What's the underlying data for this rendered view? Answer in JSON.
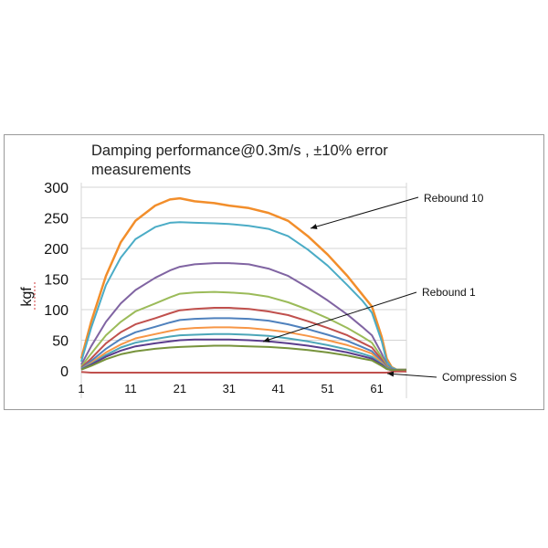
{
  "chart_data": {
    "type": "line",
    "title": "Damping performance@0.3m/s , ±10% error measurements",
    "xlabel": "",
    "ylabel": "kgf",
    "xlim": [
      1,
      67
    ],
    "ylim": [
      0,
      300
    ],
    "x_ticks": [
      "1",
      "11",
      "21",
      "31",
      "41",
      "51",
      "61"
    ],
    "y_ticks": [
      "0",
      "50",
      "100",
      "150",
      "200",
      "250",
      "300"
    ],
    "grid": "horizontal",
    "legend": "none",
    "x": [
      1,
      3,
      6,
      9,
      12,
      16,
      19,
      21,
      24,
      28,
      31,
      35,
      39,
      43,
      47,
      51,
      55,
      58,
      60,
      62,
      63,
      64,
      65,
      67
    ],
    "series": [
      {
        "name": "Rebound 10",
        "color": "#f28e2b",
        "values": [
          20,
          80,
          155,
          210,
          245,
          270,
          280,
          282,
          277,
          274,
          270,
          266,
          258,
          245,
          220,
          190,
          155,
          125,
          105,
          55,
          20,
          6,
          2,
          2
        ]
      },
      {
        "color": "#4bacc6",
        "values": [
          15,
          70,
          140,
          185,
          215,
          235,
          242,
          243,
          242,
          241,
          240,
          237,
          232,
          220,
          198,
          172,
          140,
          115,
          95,
          48,
          15,
          5,
          2,
          2
        ]
      },
      {
        "color": "#8064a2",
        "values": [
          10,
          40,
          80,
          110,
          132,
          152,
          164,
          170,
          174,
          176,
          176,
          174,
          167,
          155,
          136,
          115,
          92,
          72,
          58,
          28,
          10,
          3,
          1,
          1
        ]
      },
      {
        "color": "#9bbb59",
        "values": [
          7,
          28,
          58,
          80,
          97,
          110,
          120,
          126,
          128,
          129,
          128,
          126,
          121,
          112,
          100,
          86,
          70,
          56,
          46,
          22,
          8,
          2,
          1,
          1
        ]
      },
      {
        "color": "#c0504d",
        "values": [
          5,
          20,
          45,
          63,
          76,
          86,
          94,
          99,
          101,
          103,
          103,
          101,
          97,
          91,
          81,
          70,
          58,
          46,
          38,
          18,
          6,
          2,
          1,
          1
        ]
      },
      {
        "color": "#4f81bd",
        "values": [
          4,
          16,
          36,
          52,
          63,
          72,
          79,
          83,
          85,
          86,
          86,
          85,
          82,
          76,
          68,
          59,
          49,
          39,
          32,
          15,
          5,
          2,
          1,
          1
        ]
      },
      {
        "color": "#f79646",
        "values": [
          3,
          13,
          30,
          43,
          53,
          60,
          65,
          68,
          70,
          71,
          71,
          70,
          67,
          63,
          57,
          50,
          42,
          34,
          28,
          13,
          4,
          1,
          1,
          1
        ]
      },
      {
        "color": "#4ca6b8",
        "values": [
          3,
          11,
          26,
          38,
          46,
          52,
          56,
          58,
          59,
          60,
          60,
          59,
          57,
          53,
          48,
          42,
          35,
          28,
          23,
          11,
          4,
          1,
          1,
          1
        ]
      },
      {
        "name": "Rebound 1",
        "color": "#5b3d8c",
        "values": [
          2,
          10,
          23,
          33,
          40,
          45,
          48,
          50,
          51,
          51,
          51,
          50,
          48,
          45,
          41,
          36,
          30,
          24,
          20,
          10,
          3,
          1,
          1,
          1
        ]
      },
      {
        "color": "#77933c",
        "values": [
          2,
          8,
          19,
          27,
          32,
          36,
          38,
          39,
          40,
          41,
          41,
          40,
          39,
          37,
          34,
          30,
          25,
          20,
          17,
          8,
          3,
          1,
          1,
          1
        ]
      },
      {
        "name": "Compression S",
        "color": "#c0504d",
        "values": [
          -2,
          -3,
          -3,
          -3,
          -3,
          -3,
          -3,
          -3,
          -3,
          -3,
          -3,
          -3,
          -3,
          -3,
          -3,
          -3,
          -3,
          -3,
          -3,
          -3,
          -3,
          -2,
          -1,
          -1
        ]
      }
    ],
    "annotations": [
      "Rebound 10",
      "Rebound 1",
      "Compression S"
    ]
  }
}
